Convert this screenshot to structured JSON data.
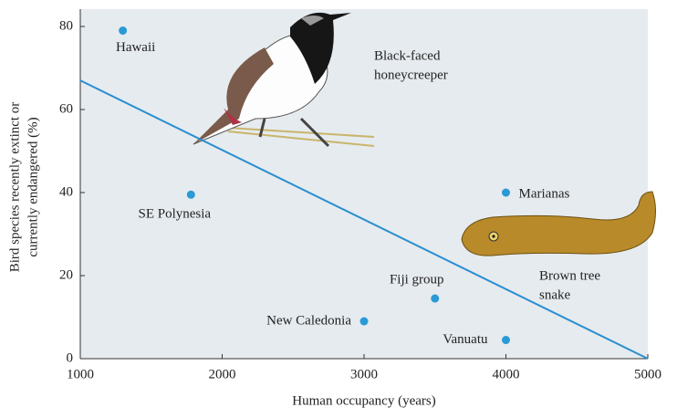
{
  "chart_data": {
    "type": "scatter",
    "xlabel": "Human occupancy (years)",
    "ylabel": [
      "Bird species recently extinct or",
      "currently endangered (%)"
    ],
    "x": [
      1300,
      1780,
      3000,
      3500,
      4000,
      4000
    ],
    "values": [
      79,
      39.5,
      9,
      14.5,
      40,
      4.5
    ],
    "labels": [
      "Hawaii",
      "SE Polynesia",
      "New Caledonia",
      "Fiji group",
      "Marianas",
      "Vanuatu"
    ],
    "color": "#2a9ad6",
    "line": {
      "x": [
        1000,
        5000
      ],
      "values": [
        67,
        0
      ],
      "color": "#2a8fd0"
    },
    "annotations": [
      [
        "Black-faced",
        "honeycreeper"
      ],
      [
        "Brown tree",
        "snake"
      ]
    ],
    "xlim": [
      1000,
      5000
    ],
    "ylim": [
      0,
      80
    ],
    "xticks": [
      1000,
      2000,
      3000,
      4000,
      5000
    ],
    "yticks": [
      0,
      20,
      40,
      60,
      80
    ]
  }
}
